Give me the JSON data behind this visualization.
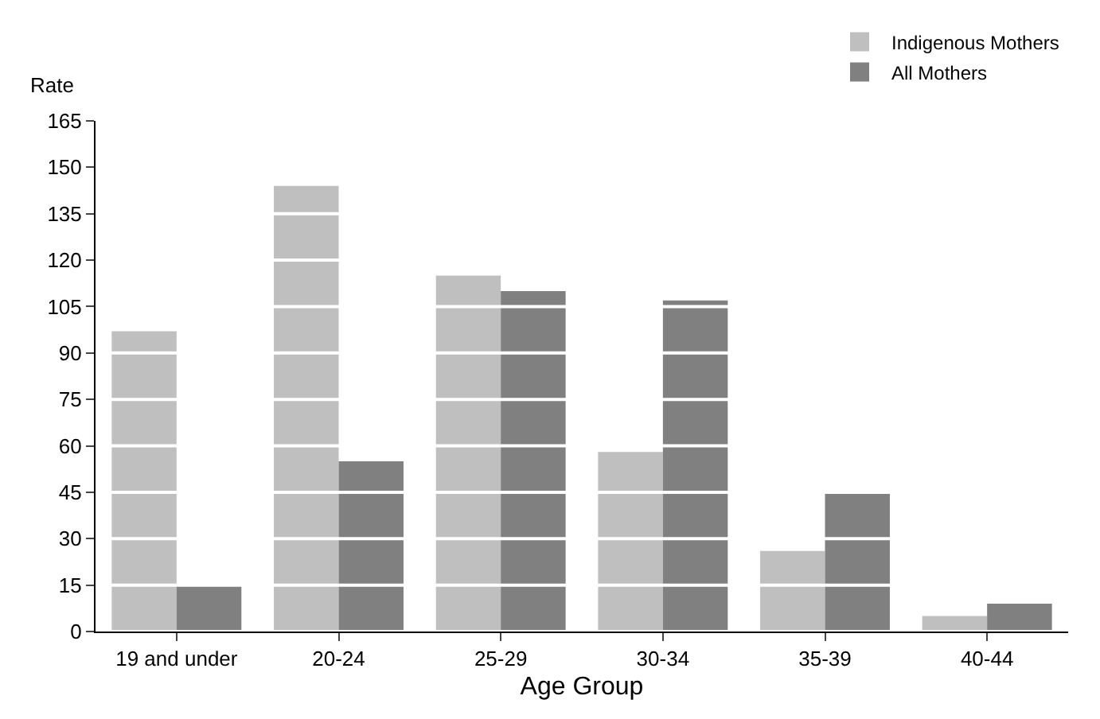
{
  "chart_data": {
    "type": "bar",
    "ylabel": "Rate",
    "xlabel": "Age Group",
    "categories": [
      "19 and under",
      "20-24",
      "25-29",
      "30-34",
      "35-39",
      "40-44"
    ],
    "series": [
      {
        "name": "Indigenous Mothers",
        "color": "#bfbfbf",
        "values": [
          97,
          144,
          115,
          58,
          26,
          5
        ]
      },
      {
        "name": "All Mothers",
        "color": "#808080",
        "values": [
          15,
          55,
          110,
          107,
          45,
          9
        ]
      }
    ],
    "ylim": [
      0,
      165
    ],
    "yticks": [
      0,
      15,
      30,
      45,
      60,
      75,
      90,
      105,
      120,
      135,
      150,
      165
    ],
    "grid": "y",
    "legend": "top right"
  }
}
